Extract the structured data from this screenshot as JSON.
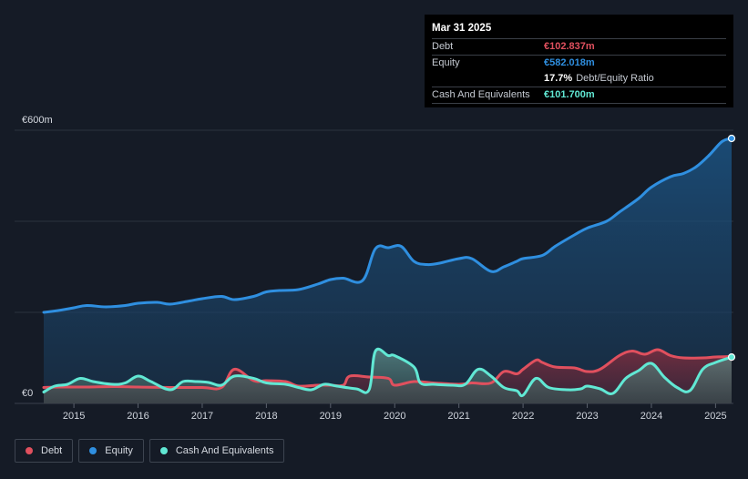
{
  "chart_data": {
    "type": "area",
    "y_axis": {
      "top_label": "€600m",
      "bottom_label": "€0",
      "ylim": [
        0,
        600
      ]
    },
    "x_ticks": [
      "2015",
      "2016",
      "2017",
      "2018",
      "2019",
      "2020",
      "2021",
      "2022",
      "2023",
      "2024",
      "2025"
    ],
    "xlim": [
      2014.53,
      2025.25
    ],
    "series": [
      {
        "name": "Debt",
        "color": "#e0505e",
        "x": [
          2014.53,
          2014.8,
          2015.2,
          2015.6,
          2016.0,
          2016.5,
          2017.0,
          2017.3,
          2017.5,
          2017.8,
          2018.0,
          2018.3,
          2018.5,
          2018.8,
          2019.0,
          2019.2,
          2019.3,
          2019.6,
          2019.9,
          2020.0,
          2020.3,
          2020.6,
          2021.0,
          2021.2,
          2021.5,
          2021.7,
          2021.9,
          2022.0,
          2022.2,
          2022.3,
          2022.5,
          2022.8,
          2023.0,
          2023.2,
          2023.5,
          2023.7,
          2023.9,
          2024.1,
          2024.3,
          2024.5,
          2024.8,
          2025.0,
          2025.25
        ],
        "values": [
          35,
          36,
          36,
          37,
          36,
          35,
          35,
          35,
          75,
          50,
          50,
          48,
          38,
          40,
          40,
          40,
          60,
          58,
          55,
          40,
          48,
          45,
          42,
          45,
          45,
          70,
          65,
          75,
          95,
          90,
          80,
          78,
          70,
          75,
          105,
          115,
          108,
          118,
          105,
          100,
          100,
          102,
          102.8
        ]
      },
      {
        "name": "Equity",
        "color": "#2f8fe0",
        "x": [
          2014.53,
          2014.8,
          2015.0,
          2015.2,
          2015.5,
          2015.8,
          2016.0,
          2016.3,
          2016.5,
          2016.8,
          2017.0,
          2017.3,
          2017.5,
          2017.8,
          2018.0,
          2018.2,
          2018.5,
          2018.8,
          2019.0,
          2019.2,
          2019.5,
          2019.7,
          2019.9,
          2020.1,
          2020.3,
          2020.5,
          2020.7,
          2021.0,
          2021.2,
          2021.5,
          2021.7,
          2021.9,
          2022.0,
          2022.3,
          2022.5,
          2022.8,
          2023.0,
          2023.3,
          2023.5,
          2023.8,
          2024.0,
          2024.3,
          2024.5,
          2024.7,
          2024.9,
          2025.1,
          2025.25
        ],
        "values": [
          200,
          205,
          210,
          215,
          212,
          215,
          220,
          222,
          218,
          225,
          230,
          235,
          228,
          235,
          245,
          248,
          250,
          262,
          272,
          275,
          270,
          340,
          342,
          345,
          312,
          305,
          308,
          318,
          318,
          290,
          300,
          312,
          318,
          325,
          345,
          370,
          385,
          400,
          420,
          450,
          475,
          498,
          505,
          520,
          545,
          575,
          582
        ]
      },
      {
        "name": "Cash And Equivalents",
        "color": "#61e8d4",
        "x": [
          2014.53,
          2014.7,
          2014.9,
          2015.1,
          2015.3,
          2015.6,
          2015.8,
          2016.0,
          2016.2,
          2016.5,
          2016.7,
          2016.9,
          2017.1,
          2017.3,
          2017.5,
          2017.8,
          2018.0,
          2018.3,
          2018.5,
          2018.7,
          2018.9,
          2019.1,
          2019.4,
          2019.6,
          2019.7,
          2019.9,
          2020.0,
          2020.3,
          2020.4,
          2020.6,
          2020.9,
          2021.1,
          2021.3,
          2021.5,
          2021.7,
          2021.9,
          2022.0,
          2022.2,
          2022.4,
          2022.7,
          2022.9,
          2023.0,
          2023.2,
          2023.4,
          2023.6,
          2023.8,
          2024.0,
          2024.2,
          2024.4,
          2024.6,
          2024.8,
          2025.0,
          2025.25
        ],
        "values": [
          25,
          38,
          42,
          55,
          48,
          42,
          45,
          60,
          48,
          30,
          48,
          48,
          46,
          40,
          60,
          55,
          45,
          42,
          35,
          30,
          42,
          38,
          32,
          30,
          115,
          105,
          105,
          80,
          45,
          42,
          40,
          42,
          75,
          60,
          35,
          28,
          18,
          55,
          35,
          30,
          32,
          38,
          32,
          22,
          55,
          72,
          88,
          58,
          35,
          28,
          75,
          90,
          101.7
        ]
      }
    ],
    "tooltip": {
      "date": "Mar 31 2025",
      "debt_label": "Debt",
      "debt_value": "€102.837m",
      "equity_label": "Equity",
      "equity_value": "€582.018m",
      "ratio_value": "17.7%",
      "ratio_label": "Debt/Equity Ratio",
      "cash_label": "Cash And Equivalents",
      "cash_value": "€101.700m"
    },
    "legend": [
      {
        "label": "Debt",
        "color": "#e0505e"
      },
      {
        "label": "Equity",
        "color": "#2f8fe0"
      },
      {
        "label": "Cash And Equivalents",
        "color": "#61e8d4"
      }
    ]
  }
}
